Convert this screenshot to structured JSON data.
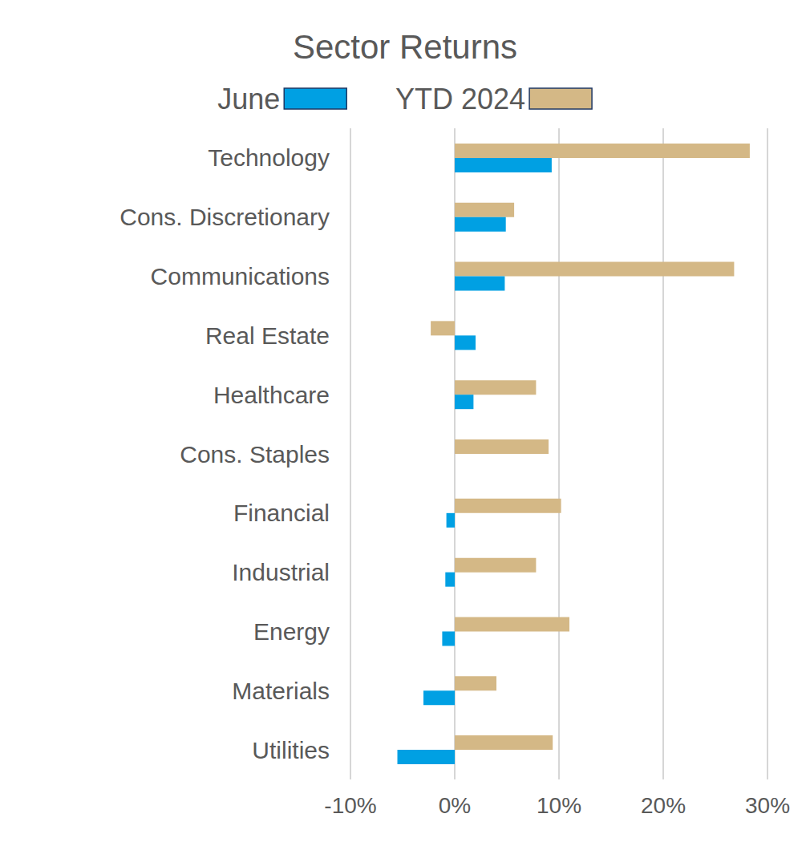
{
  "chart_data": {
    "type": "bar",
    "title": "Sector Returns",
    "orientation": "horizontal",
    "categories": [
      "Technology",
      "Cons. Discretionary",
      "Communications",
      "Real Estate",
      "Healthcare",
      "Cons. Staples",
      "Financial",
      "Industrial",
      "Energy",
      "Materials",
      "Utilities"
    ],
    "series": [
      {
        "name": "June",
        "color": "#00A0E3",
        "values": [
          9.3,
          4.9,
          4.8,
          2.0,
          1.8,
          0.0,
          -0.8,
          -0.9,
          -1.2,
          -3.0,
          -5.5
        ]
      },
      {
        "name": "YTD 2024",
        "color": "#D4B886",
        "values": [
          28.3,
          5.7,
          26.8,
          -2.3,
          7.8,
          9.0,
          10.2,
          7.8,
          11.0,
          4.0,
          9.4
        ]
      }
    ],
    "xlim": [
      -10,
      30
    ],
    "xticks": [
      {
        "value": -10,
        "label": "-10%"
      },
      {
        "value": 0,
        "label": "0%"
      },
      {
        "value": 10,
        "label": "10%"
      },
      {
        "value": 20,
        "label": "20%"
      },
      {
        "value": 30,
        "label": "30%"
      }
    ],
    "grid": true,
    "legend": "top"
  }
}
